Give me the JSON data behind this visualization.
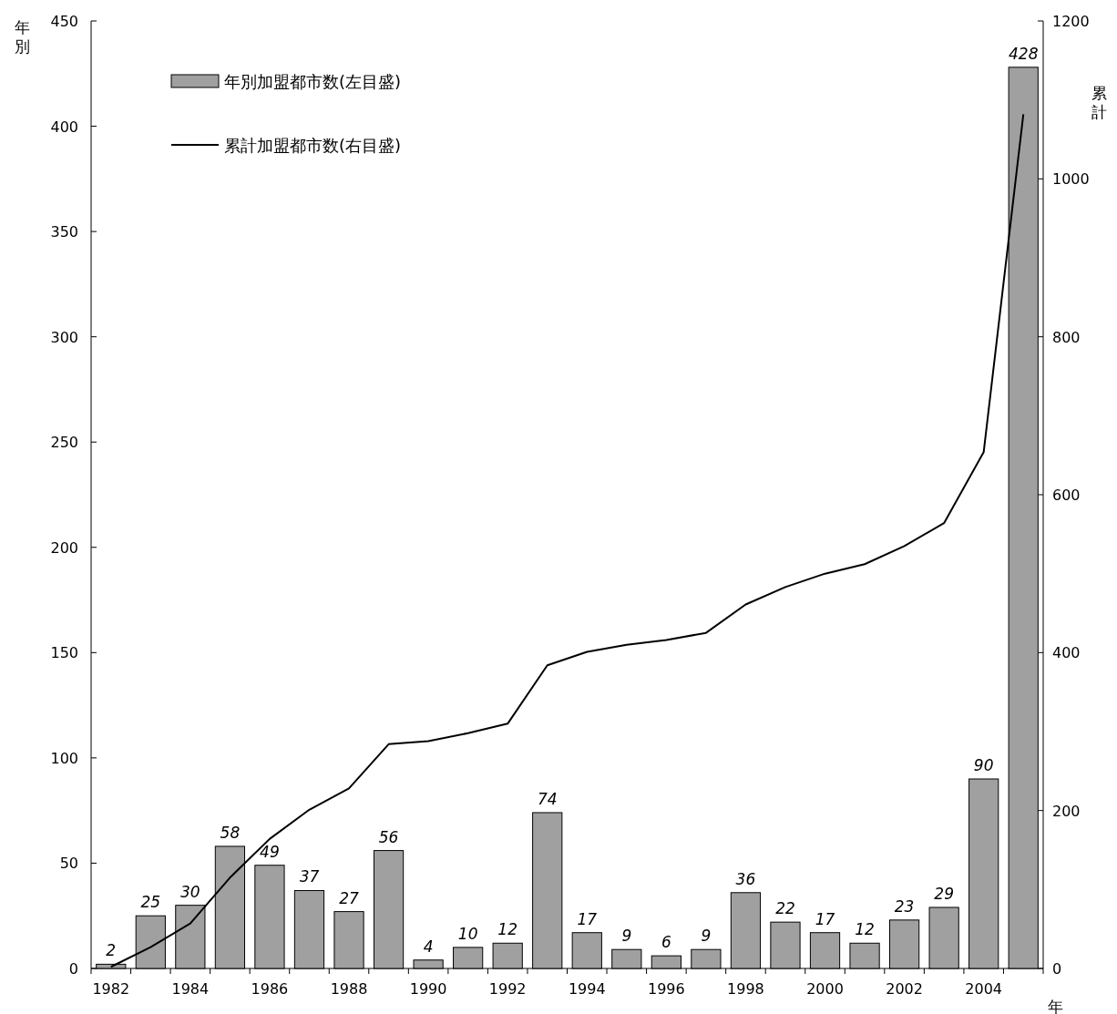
{
  "chart_data": {
    "type": "bar",
    "xlabel": "年",
    "ylabel": "年別",
    "y2label": "累計",
    "categories": [
      "1982",
      null,
      "1984",
      null,
      "1986",
      null,
      "1988",
      null,
      "1990",
      null,
      "1992",
      null,
      "1994",
      null,
      "1996",
      null,
      "1998",
      null,
      "2000",
      null,
      "2002",
      null,
      "2004",
      null
    ],
    "series": [
      {
        "name": "年別加盟都市数(左目盛)",
        "color": "#a0a0a0",
        "values": [
          2,
          25,
          30,
          58,
          49,
          37,
          27,
          56,
          4,
          10,
          12,
          74,
          17,
          9,
          6,
          9,
          36,
          22,
          17,
          12,
          23,
          29,
          90,
          428
        ],
        "value_labels": [
          "2",
          "25",
          "30",
          "58",
          "49",
          "37",
          "27",
          "56",
          "4",
          "10",
          "12",
          "74",
          "17",
          "9",
          "6",
          "9",
          "36",
          "22",
          "17",
          "12",
          "23",
          "29",
          "90",
          "428"
        ]
      },
      {
        "name": "累計加盟都市数(右目盛)",
        "type": "line",
        "axis": "y2",
        "color": "#000000",
        "values": [
          2,
          27,
          57,
          115,
          164,
          201,
          228,
          284,
          288,
          298,
          310,
          384,
          401,
          410,
          416,
          425,
          461,
          483,
          500,
          512,
          535,
          564,
          654,
          1082
        ]
      }
    ],
    "legend": "top left",
    "ylim": [
      0,
      450
    ],
    "yticks": [
      0,
      50,
      100,
      150,
      200,
      250,
      300,
      350,
      400,
      450
    ],
    "y2lim": [
      0,
      1200
    ],
    "y2ticks": [
      0,
      200,
      400,
      600,
      800,
      1000,
      1200
    ]
  }
}
